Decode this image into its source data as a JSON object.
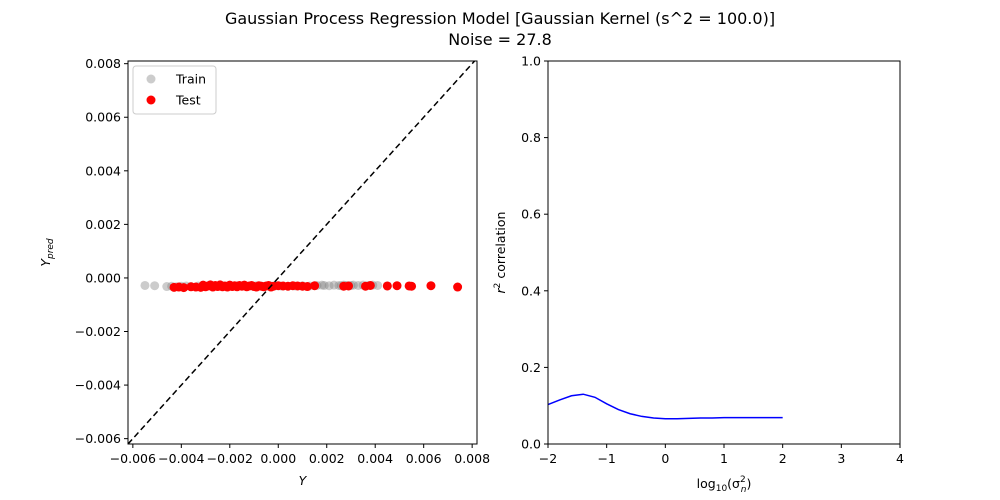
{
  "title_line1": "Gaussian Process Regression Model [Gaussian Kernel (s^2 = 100.0)]",
  "title_line2": "Noise = 27.8",
  "chart_data": [
    {
      "type": "scatter",
      "xlabel": "Y",
      "ylabel": "Y_pred",
      "xlim": [
        -0.0062,
        0.0082
      ],
      "ylim": [
        -0.0062,
        0.0081
      ],
      "x_ticks": [
        -0.006,
        -0.004,
        -0.002,
        0.0,
        0.002,
        0.004,
        0.006,
        0.008
      ],
      "x_tick_labels": [
        "−0.006",
        "−0.004",
        "−0.002",
        "0.000",
        "0.002",
        "0.004",
        "0.006",
        "0.008"
      ],
      "y_ticks": [
        -0.006,
        -0.004,
        -0.002,
        0.0,
        0.002,
        0.004,
        0.006,
        0.008
      ],
      "y_tick_labels": [
        "−0.006",
        "−0.004",
        "−0.002",
        "0.000",
        "0.002",
        "0.004",
        "0.006",
        "0.008"
      ],
      "grid": false,
      "legend": {
        "placement": "upper-left",
        "entries": [
          "Train",
          "Test"
        ]
      },
      "reference_line": {
        "style": "dashed",
        "color": "#000000",
        "x": [
          -0.0062,
          0.0082
        ],
        "y": [
          -0.0062,
          0.0082
        ]
      },
      "series": [
        {
          "name": "Train",
          "color": "#808080",
          "opacity": 0.4,
          "x": [
            -0.0055,
            -0.0051,
            -0.0046,
            -0.0044,
            -0.0042,
            -0.004,
            -0.0038,
            -0.0036,
            -0.0033,
            -0.0031,
            -0.0029,
            -0.0027,
            -0.0025,
            -0.0023,
            -0.0021,
            -0.0019,
            -0.0017,
            -0.0015,
            -0.0013,
            -0.0011,
            -0.0009,
            -0.0007,
            -0.0005,
            -0.0003,
            -0.0001,
            0.0001,
            0.0004,
            0.0007,
            0.001,
            0.0013,
            0.0016,
            0.0018,
            0.0019,
            0.0021,
            0.0023,
            0.0025,
            0.0026,
            0.0027,
            0.0028,
            0.0029,
            0.003,
            0.0031,
            0.0033,
            0.0035,
            0.0037,
            0.0039,
            0.0041,
            0.0045
          ],
          "y": [
            -0.00028,
            -0.00029,
            -0.00032,
            -0.00031,
            -0.00033,
            -0.00031,
            -0.0003,
            -0.00032,
            -0.0003,
            -0.00031,
            -0.00029,
            -0.0003,
            -0.00031,
            -0.00029,
            -0.0003,
            -0.00031,
            -0.00029,
            -0.0003,
            -0.00031,
            -0.0003,
            -0.00029,
            -0.0003,
            -0.00031,
            -0.0003,
            -0.00029,
            -0.0003,
            -0.00031,
            -0.0003,
            -0.00029,
            -0.0003,
            -0.00028,
            -0.00027,
            -0.00028,
            -0.00029,
            -0.00027,
            -0.00028,
            -0.00029,
            -0.00027,
            -0.00028,
            -0.00029,
            -0.00028,
            -0.00027,
            -0.00028,
            -0.00027,
            -0.00028,
            -0.00027,
            -0.00028,
            -0.0003
          ]
        },
        {
          "name": "Test",
          "color": "#ff0000",
          "opacity": 1.0,
          "x": [
            -0.0043,
            -0.0041,
            -0.0039,
            -0.0036,
            -0.0034,
            -0.0032,
            -0.0031,
            -0.003,
            -0.0029,
            -0.0028,
            -0.0027,
            -0.0026,
            -0.0025,
            -0.0024,
            -0.0023,
            -0.0022,
            -0.0021,
            -0.002,
            -0.0019,
            -0.0018,
            -0.0017,
            -0.0016,
            -0.0015,
            -0.0014,
            -0.0013,
            -0.0012,
            -0.0011,
            -0.001,
            -0.0009,
            -0.0008,
            -0.0007,
            -0.0006,
            -0.0005,
            -0.0004,
            -0.0003,
            -0.0002,
            0.0,
            0.0002,
            0.0004,
            0.0006,
            0.0008,
            0.001,
            0.0012,
            0.0015,
            0.0027,
            0.0029,
            0.0036,
            0.0038,
            0.0045,
            0.0049,
            0.0054,
            0.0055,
            0.0063,
            0.0074
          ],
          "y": [
            -0.00035,
            -0.00034,
            -0.00036,
            -0.00033,
            -0.00034,
            -0.00035,
            -0.00027,
            -0.00033,
            -0.0003,
            -0.00026,
            -0.00034,
            -0.00028,
            -0.00032,
            -0.00026,
            -0.00033,
            -0.0003,
            -0.00034,
            -0.00027,
            -0.00032,
            -0.00029,
            -0.00033,
            -0.00028,
            -0.00031,
            -0.00027,
            -0.00033,
            -0.0003,
            -0.00028,
            -0.00032,
            -0.00034,
            -0.00029,
            -0.00031,
            -0.00033,
            -0.0003,
            -0.00028,
            -0.00034,
            -0.00031,
            -0.00029,
            -0.0003,
            -0.00031,
            -0.00029,
            -0.0003,
            -0.00031,
            -0.00032,
            -0.00029,
            -0.00031,
            -0.0003,
            -0.00031,
            -0.00028,
            -0.0003,
            -0.00029,
            -0.0003,
            -0.00031,
            -0.00029,
            -0.00034
          ]
        }
      ]
    },
    {
      "type": "line",
      "xlabel": "log10(σ_n^2)",
      "ylabel": "r^2 correlation",
      "xlim": [
        -2,
        4
      ],
      "ylim": [
        0.0,
        1.0
      ],
      "x_ticks": [
        -2,
        -1,
        0,
        1,
        2,
        3,
        4
      ],
      "x_tick_labels": [
        "−2",
        "−1",
        "0",
        "1",
        "2",
        "3",
        "4"
      ],
      "y_ticks": [
        0.0,
        0.2,
        0.4,
        0.6,
        0.8,
        1.0
      ],
      "y_tick_labels": [
        "0.0",
        "0.2",
        "0.4",
        "0.6",
        "0.8",
        "1.0"
      ],
      "grid": false,
      "series": [
        {
          "color": "#0000ff",
          "x": [
            -2.0,
            -1.8,
            -1.6,
            -1.4,
            -1.2,
            -1.0,
            -0.8,
            -0.6,
            -0.4,
            -0.2,
            0.0,
            0.2,
            0.4,
            0.6,
            0.8,
            1.0,
            1.2,
            1.4,
            1.6,
            1.8,
            2.0
          ],
          "y": [
            0.103,
            0.115,
            0.126,
            0.13,
            0.122,
            0.105,
            0.09,
            0.079,
            0.072,
            0.068,
            0.066,
            0.066,
            0.067,
            0.068,
            0.068,
            0.069,
            0.069,
            0.069,
            0.069,
            0.069,
            0.069
          ]
        }
      ]
    }
  ]
}
